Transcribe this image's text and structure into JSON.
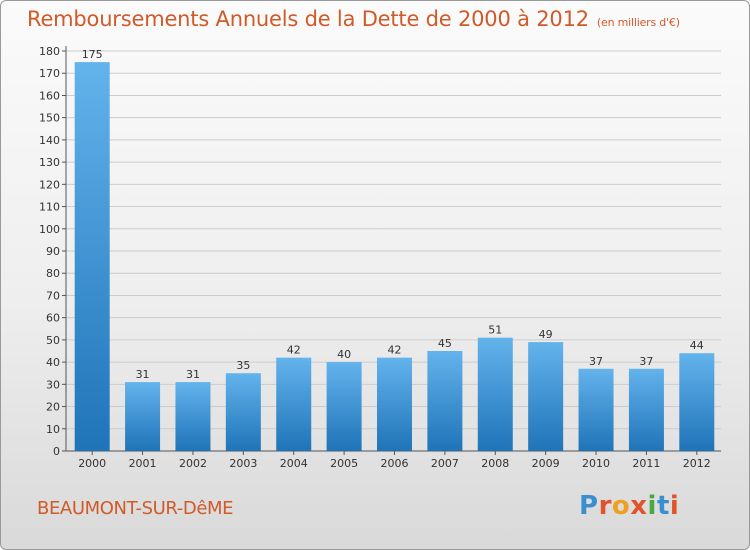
{
  "title": "Remboursements Annuels de la Dette de 2000 à 2012",
  "subtitle": "(en milliers d'€)",
  "town": "BEAUMONT-SUR-DêME",
  "logo": {
    "letters": [
      "P",
      "r",
      "o",
      "x",
      "i",
      "t",
      "i"
    ],
    "colors": [
      "#3a8fd0",
      "#e0542c",
      "#f0a020",
      "#e0542c",
      "#4aa840",
      "#3a8fd0",
      "#e0542c"
    ]
  },
  "colors": {
    "bar_light": "#63b3ec",
    "bar_dark": "#1f74b8",
    "grid": "#cccccc",
    "title": "#d05a28"
  },
  "chart_data": {
    "type": "bar",
    "categories": [
      "2000",
      "2001",
      "2002",
      "2003",
      "2004",
      "2005",
      "2006",
      "2007",
      "2008",
      "2009",
      "2010",
      "2011",
      "2012"
    ],
    "values": [
      175,
      31,
      31,
      35,
      42,
      40,
      42,
      45,
      51,
      49,
      37,
      37,
      44
    ],
    "ylim": [
      0,
      180
    ],
    "yticks": [
      0,
      10,
      20,
      30,
      40,
      50,
      60,
      70,
      80,
      90,
      100,
      110,
      120,
      130,
      140,
      150,
      160,
      170,
      180
    ],
    "grid": true,
    "data_labels": true
  }
}
